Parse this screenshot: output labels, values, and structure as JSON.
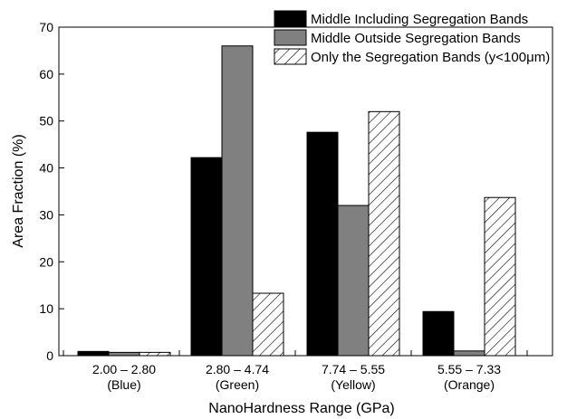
{
  "chart_data": {
    "type": "bar",
    "title": "",
    "xlabel": "NanoHardness Range (GPa)",
    "ylabel": "Area Fraction (%)",
    "ylim": [
      0,
      70
    ],
    "yticks": [
      0,
      10,
      20,
      30,
      40,
      50,
      60,
      70
    ],
    "grid": false,
    "legend_position": "top-right",
    "categories": [
      {
        "range": "2.00 – 2.80",
        "color_name": "(Blue)"
      },
      {
        "range": "2.80 – 4.74",
        "color_name": "(Green)"
      },
      {
        "range": "7.74 – 5.55",
        "color_name": "(Yellow)"
      },
      {
        "range": "5.55 – 7.33",
        "color_name": "(Orange)"
      }
    ],
    "series": [
      {
        "name": "Middle Including Segregation Bands",
        "fill": "solid",
        "color": "#000000",
        "values": [
          0.9,
          42.2,
          47.6,
          9.4
        ]
      },
      {
        "name": "Middle Outside Segregation Bands",
        "fill": "solid",
        "color": "#808080",
        "values": [
          0.7,
          66.0,
          32.0,
          1.0
        ]
      },
      {
        "name": "Only the Segregation Bands (y<100μm)",
        "fill": "hatch",
        "color": "#ffffff",
        "values": [
          0.7,
          13.3,
          52.0,
          33.7
        ]
      }
    ]
  }
}
